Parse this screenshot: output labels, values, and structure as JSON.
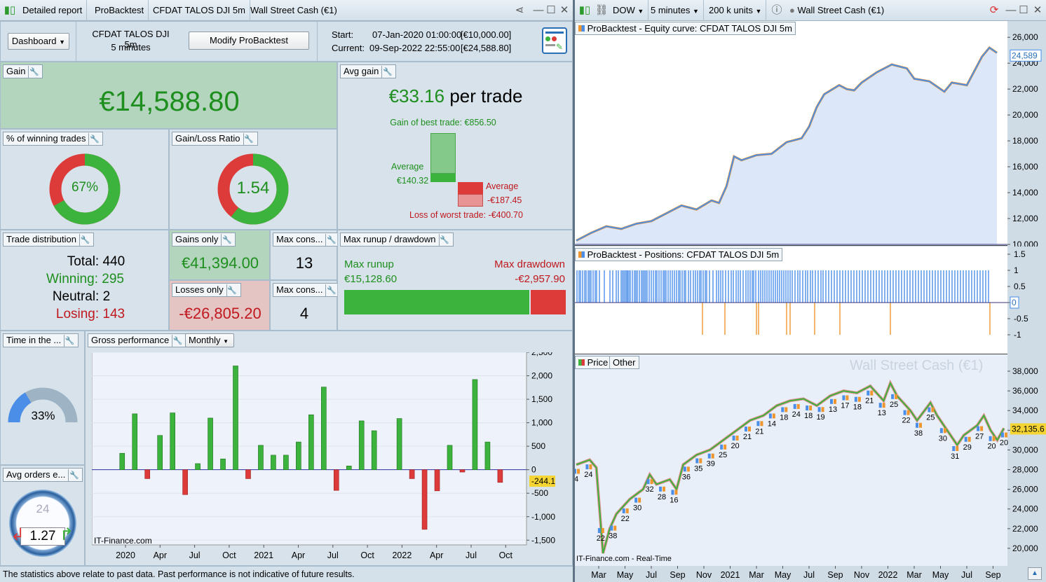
{
  "left_tabs": [
    "Detailed report",
    "ProBacktest",
    "CFDAT TALOS DJI 5m",
    "Wall Street Cash (€1)"
  ],
  "right_toolbar": {
    "instrument": "DOW",
    "timeframe": "5 minutes",
    "units": "200 k units",
    "title": "Wall Street Cash (€1)"
  },
  "header": {
    "dashboard_label": "Dashboard",
    "system_name": "CFDAT TALOS DJI 5m",
    "system_tf": "5 minutes",
    "modify_button": "Modify ProBacktest",
    "start_label": "Start:",
    "start_value": "07-Jan-2020 01:00:00",
    "start_capital": "[€10,000.00]",
    "current_label": "Current:",
    "current_value": "09-Sep-2022 22:55:00",
    "current_capital": "[€24,588.80]"
  },
  "gain": {
    "label": "Gain",
    "value": "€14,588.80"
  },
  "avg_gain": {
    "label": "Avg gain",
    "value": "€33.16",
    "suffix": "per trade",
    "best_trade": "Gain of best trade: €856.50",
    "avg_win_label": "Average",
    "avg_win_value": "€140.32",
    "avg_loss_label": "Average",
    "avg_loss_value": "-€187.45",
    "worst_trade": "Loss of worst trade: -€400.70",
    "best_value": 856.5,
    "avg_win": 140.32,
    "avg_loss": 187.45,
    "worst_value": 400.7
  },
  "winning_pct": {
    "label": "% of winning trades",
    "value": "67%",
    "fraction": 0.67
  },
  "gl_ratio": {
    "label": "Gain/Loss Ratio",
    "value": "1.54",
    "fraction": 0.606
  },
  "trade_dist": {
    "label": "Trade distribution",
    "total": "Total: 440",
    "winning": "Winning: 295",
    "neutral": "Neutral: 2",
    "losing": "Losing: 143"
  },
  "gains_only": {
    "label": "Gains only",
    "value": "€41,394.00"
  },
  "losses_only": {
    "label": "Losses only",
    "value": "-€26,805.20"
  },
  "max_cons_win": {
    "label": "Max cons...",
    "value": "13"
  },
  "max_cons_loss": {
    "label": "Max cons...",
    "value": "4"
  },
  "runup": {
    "label": "Max runup / drawdown",
    "runup_label": "Max runup",
    "runup_value": "€15,128.60",
    "dd_label": "Max drawdown",
    "dd_value": "-€2,957.90",
    "runup_num": 15128.6,
    "dd_num": 2957.9
  },
  "time_in": {
    "label": "Time in the ...",
    "value": "33%",
    "fraction": 0.33
  },
  "avg_orders": {
    "label": "Avg orders e...",
    "value": "1.27",
    "dial": "24"
  },
  "gross": {
    "label": "Gross performance",
    "period": "Monthly",
    "watermark": "IT-Finance.com"
  },
  "chart_data": [
    {
      "type": "bar",
      "title": "Gross performance",
      "x": [
        "2020-01",
        "2020-02",
        "2020-03",
        "2020-04",
        "2020-05",
        "2020-06",
        "2020-07",
        "2020-08",
        "2020-09",
        "2020-10",
        "2020-11",
        "2020-12",
        "2021-01",
        "2021-02",
        "2021-03",
        "2021-04",
        "2021-05",
        "2021-06",
        "2021-07",
        "2021-08",
        "2021-09",
        "2021-10",
        "2021-11",
        "2021-12",
        "2022-01",
        "2022-02",
        "2022-03",
        "2022-04",
        "2022-05",
        "2022-06",
        "2022-07",
        "2022-08",
        "2022-09"
      ],
      "values": [
        350,
        1190,
        -190,
        730,
        1210,
        -530,
        130,
        1100,
        230,
        2210,
        -190,
        520,
        310,
        310,
        590,
        1170,
        1760,
        -440,
        80,
        1040,
        830,
        0,
        1090,
        -190,
        -1270,
        -450,
        520,
        -50,
        1920,
        590,
        -270,
        0,
        0
      ],
      "x_tick_labels": [
        "2020",
        "Apr",
        "Jul",
        "Oct",
        "2021",
        "Apr",
        "Jul",
        "Oct",
        "2022",
        "Apr",
        "Jul",
        "Oct"
      ],
      "y_ticks": [
        "2,500",
        "2,000",
        "1,500",
        "1,000",
        "500",
        "0",
        "-500",
        "-1,000",
        "-1,500"
      ],
      "current_value_label": "-244.1",
      "ylim": [
        -1600,
        2500
      ]
    },
    {
      "type": "line",
      "title": "ProBacktest - Equity curve: CFDAT TALOS DJI 5m",
      "x_range": [
        "2020-01-07",
        "2022-09-09"
      ],
      "points": [
        [
          0,
          10300
        ],
        [
          2,
          10900
        ],
        [
          4,
          11400
        ],
        [
          6,
          11200
        ],
        [
          8,
          11600
        ],
        [
          10,
          11800
        ],
        [
          12,
          12400
        ],
        [
          14,
          13000
        ],
        [
          16,
          12700
        ],
        [
          18,
          13400
        ],
        [
          19,
          13200
        ],
        [
          20,
          14500
        ],
        [
          21,
          16800
        ],
        [
          22,
          16500
        ],
        [
          24,
          16900
        ],
        [
          26,
          17000
        ],
        [
          28,
          17900
        ],
        [
          30,
          18200
        ],
        [
          31,
          19100
        ],
        [
          32,
          20600
        ],
        [
          33,
          21600
        ],
        [
          35,
          22300
        ],
        [
          36,
          22000
        ],
        [
          37,
          21900
        ],
        [
          38,
          22500
        ],
        [
          40,
          23300
        ],
        [
          42,
          23900
        ],
        [
          44,
          23600
        ],
        [
          45,
          22800
        ],
        [
          47,
          22600
        ],
        [
          49,
          21800
        ],
        [
          50,
          22500
        ],
        [
          52,
          22300
        ],
        [
          54,
          24500
        ],
        [
          55,
          25200
        ],
        [
          56,
          24800
        ]
      ],
      "y_ticks": [
        "26,000",
        "24,000",
        "22,000",
        "20,000",
        "18,000",
        "16,000",
        "14,000",
        "12,000",
        "10,000"
      ],
      "current_value_label": "24,589",
      "ylim": [
        10000,
        26500
      ]
    },
    {
      "type": "bar",
      "title": "ProBacktest - Positions: CFDAT TALOS DJI 5m",
      "y_ticks": [
        "1.5",
        "1",
        "0.5",
        "0",
        "-0.5",
        "-1"
      ],
      "current_value_label": "0",
      "ylim": [
        -1.5,
        1.5
      ]
    },
    {
      "type": "line",
      "title": "Price",
      "subtitle_tab": "Other",
      "watermark": "Wall Street Cash (€1)",
      "x_tick_labels": [
        "Mar",
        "May",
        "Jul",
        "Sep",
        "Nov",
        "2021",
        "Mar",
        "May",
        "Jul",
        "Sep",
        "Nov",
        "2022",
        "Mar",
        "May",
        "Jul",
        "Sep"
      ],
      "y_ticks": [
        "38,000",
        "36,000",
        "34,000",
        "32,000",
        "30,000",
        "28,000",
        "26,000",
        "24,000",
        "22,000",
        "20,000"
      ],
      "current_value_label": "32,135.6",
      "points": [
        [
          0,
          28500
        ],
        [
          2,
          29000
        ],
        [
          3,
          28200
        ],
        [
          4,
          19500
        ],
        [
          5,
          22000
        ],
        [
          6,
          23500
        ],
        [
          8,
          25000
        ],
        [
          10,
          26000
        ],
        [
          11,
          27500
        ],
        [
          12,
          26500
        ],
        [
          14,
          27000
        ],
        [
          15,
          26000
        ],
        [
          16,
          28500
        ],
        [
          18,
          29500
        ],
        [
          20,
          30000
        ],
        [
          22,
          31000
        ],
        [
          24,
          32000
        ],
        [
          26,
          33000
        ],
        [
          28,
          33500
        ],
        [
          30,
          34500
        ],
        [
          32,
          35000
        ],
        [
          34,
          35200
        ],
        [
          36,
          34500
        ],
        [
          38,
          35500
        ],
        [
          40,
          36000
        ],
        [
          42,
          35800
        ],
        [
          44,
          36500
        ],
        [
          46,
          35000
        ],
        [
          47,
          36800
        ],
        [
          48,
          35500
        ],
        [
          50,
          34000
        ],
        [
          51,
          33000
        ],
        [
          53,
          34800
        ],
        [
          54,
          33500
        ],
        [
          56,
          31500
        ],
        [
          57,
          30500
        ],
        [
          58,
          31500
        ],
        [
          60,
          32500
        ],
        [
          61,
          33500
        ],
        [
          62,
          32000
        ],
        [
          63,
          31000
        ],
        [
          64,
          32200
        ]
      ],
      "trade_labels": [
        "4",
        "24",
        "22",
        "38",
        "22",
        "30",
        "32",
        "28",
        "16",
        "36",
        "35",
        "39",
        "25",
        "20",
        "21",
        "21",
        "14",
        "18",
        "24",
        "18",
        "19",
        "13",
        "17",
        "18",
        "21",
        "13",
        "25",
        "22",
        "38",
        "25",
        "30",
        "31",
        "29",
        "27",
        "20",
        "20"
      ],
      "watermark_bottom": "IT-Finance.com - Real-Time",
      "ylim": [
        18500,
        39000
      ]
    }
  ],
  "positions_long": [
    1,
    4,
    6,
    9,
    12,
    14,
    17,
    19,
    21,
    24,
    27,
    29,
    33,
    40,
    48,
    52,
    57,
    60,
    64,
    66,
    68,
    70,
    72,
    73,
    75,
    77,
    80,
    83,
    85,
    87,
    90,
    93,
    95,
    97,
    99,
    101,
    104,
    107,
    110,
    113,
    115,
    118,
    121,
    124,
    126,
    128,
    131,
    134,
    137,
    140,
    143,
    146,
    148,
    151,
    154,
    156,
    160,
    163,
    167,
    170,
    173,
    176,
    178,
    181,
    184,
    186,
    190,
    195,
    200,
    203,
    206,
    209,
    213,
    217,
    221,
    224,
    228,
    231,
    234,
    238,
    242,
    245,
    248,
    251,
    253,
    256,
    260,
    263,
    266,
    269,
    272,
    275,
    278,
    281,
    284,
    287,
    290,
    293,
    296,
    299,
    302,
    305,
    308,
    312,
    316,
    319,
    323,
    327,
    330,
    334,
    337,
    341,
    345,
    349,
    352,
    356,
    360,
    364,
    368,
    372,
    376,
    380,
    384,
    388,
    392,
    396,
    400,
    404,
    408,
    412,
    416,
    420,
    424,
    428,
    432,
    436,
    440,
    444,
    448,
    452,
    456,
    460,
    464,
    468,
    472,
    476,
    480,
    484,
    488,
    492,
    496,
    500,
    504,
    508,
    512,
    516,
    520,
    524,
    528,
    532,
    536,
    540,
    544,
    548,
    552,
    556,
    560,
    564,
    568,
    572,
    576,
    580,
    584,
    588
  ],
  "positions_short": [
    180,
    212,
    257,
    260,
    300,
    305,
    340,
    376,
    448,
    590
  ],
  "status_bar": "The statistics above relate to past data. Past performance is not indicative of future results.",
  "colors": {
    "green": "#3cb33c",
    "red": "#dd3a3a",
    "blue": "#4a8ee8",
    "orange": "#f0962e",
    "accent": "#1e8f1e"
  },
  "icons": [
    "chart-icon",
    "share-icon",
    "minimize-icon",
    "maximize-icon",
    "close-icon",
    "wrench-icon",
    "gauge-icon",
    "report-settings-icon"
  ]
}
